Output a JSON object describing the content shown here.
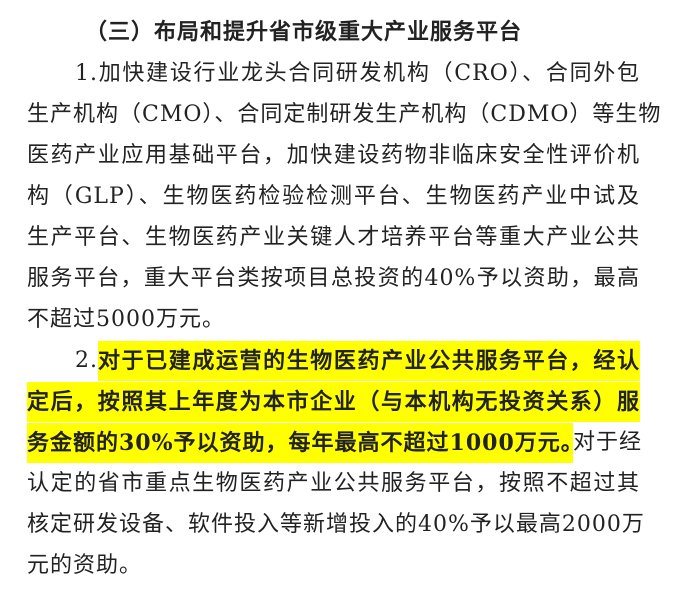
{
  "heading": "（三）布局和提升省市级重大产业服务平台",
  "item1": {
    "lines": [
      "1.加快建设行业龙头合同研发机构（CRO）、合同外包",
      "生产机构（CMO）、合同定制研发生产机构（CDMO）等生物",
      "医药产业应用基础平台，加快建设药物非临床安全性评价机",
      "构（GLP）、生物医药检验检测平台、生物医药产业中试及",
      "生产平台、生物医药产业关键人才培养平台等重大产业公共",
      "服务平台，重大平台类按项目总投资的40%予以资助，最高",
      "不超过5000万元。"
    ]
  },
  "item2": {
    "number": "2.",
    "highlighted_lines": [
      "对于已建成运营的生物医药产业公共服务平台，经认",
      "定后，按照其上年度为本市企业（与本机构无投资关系）服",
      "务金额的30%予以资助，每年最高不超过1000万元。"
    ],
    "line4_rest": "对于经",
    "lines": [
      "认定的省市重点生物医药产业公共服务平台，按照不超过其",
      "核定研发设备、软件投入等新增投入的40%予以最高2000万",
      "元的资助。"
    ]
  },
  "highlight_color": "#ffff00"
}
